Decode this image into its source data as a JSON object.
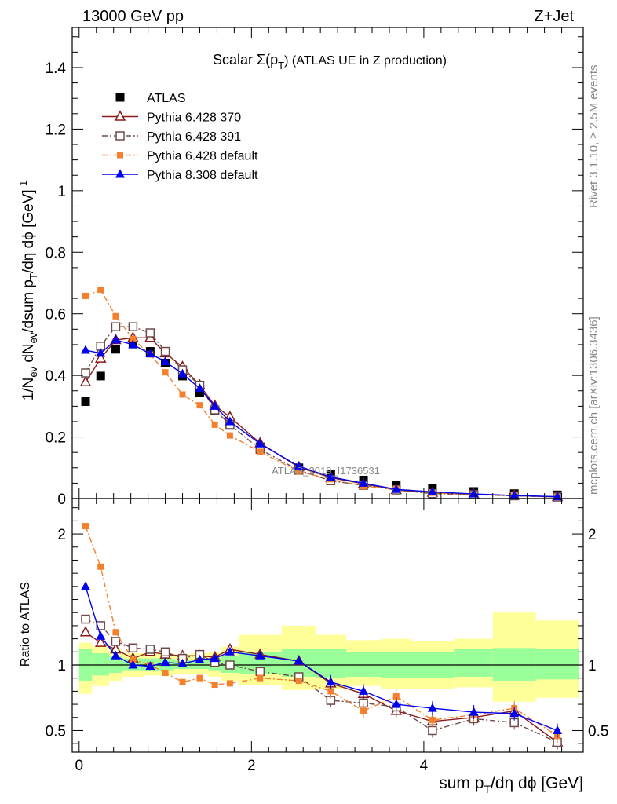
{
  "header": {
    "left": "13000 GeV pp",
    "right": "Z+Jet"
  },
  "side_labels": {
    "rivet": "Rivet 3.1.10, ≥ 2.5M events",
    "mcplots": "mcplots.cern.ch [arXiv:1306.3436]"
  },
  "watermark": "ATLAS_2019_I1736531",
  "colors": {
    "atlas": "#000000",
    "p370": "#8b1a1a",
    "p391": "#6e4a4a",
    "p6def": "#f47f2c",
    "p8def": "#0000ee",
    "band_inner": "#99ff99",
    "band_outer": "#ffff99"
  },
  "chart_data": [
    {
      "type": "line",
      "title_main": "Scalar Σ(p",
      "title_sub": "T",
      "title_tail": ") (ATLAS UE in Z production)",
      "ylabel": "1/N_ev dN_ev/dsum p_T/dη dϕ [GeV]^-1",
      "xlim": [
        -0.08,
        5.85
      ],
      "ylim": [
        0,
        1.53
      ],
      "yticks": [
        {
          "v": 0,
          "label": "0"
        },
        {
          "v": 0.2,
          "label": "0.2"
        },
        {
          "v": 0.4,
          "label": "0.4"
        },
        {
          "v": 0.6,
          "label": "0.6"
        },
        {
          "v": 0.8,
          "label": "0.8"
        },
        {
          "v": 1.0,
          "label": "1"
        },
        {
          "v": 1.2,
          "label": "1.2"
        },
        {
          "v": 1.4,
          "label": "1.4"
        }
      ],
      "x": [
        0.075,
        0.25,
        0.425,
        0.625,
        0.825,
        1.0,
        1.2,
        1.4,
        1.575,
        1.75,
        2.1,
        2.55,
        2.92,
        3.3,
        3.68,
        4.1,
        4.58,
        5.05,
        5.55
      ],
      "series": [
        {
          "key": "atlas",
          "name": "ATLAS",
          "marker": "square",
          "values": [
            0.315,
            0.398,
            0.485,
            0.502,
            0.478,
            0.44,
            0.398,
            0.343,
            0.285,
            0.238,
            0.168,
            0.1,
            0.078,
            0.06,
            0.042,
            0.033,
            0.023,
            0.016,
            0.012
          ]
        },
        {
          "key": "p370",
          "name": "Pythia 6.428 370",
          "marker": "triangle-open",
          "dash": "",
          "values": [
            0.378,
            0.455,
            0.515,
            0.522,
            0.522,
            0.472,
            0.428,
            0.368,
            0.302,
            0.265,
            0.18,
            0.102,
            0.068,
            0.048,
            0.028,
            0.019,
            0.014,
            0.01,
            0.005
          ]
        },
        {
          "key": "p391",
          "name": "Pythia 6.428 391",
          "marker": "square-open",
          "dash": "7,3,2,3",
          "values": [
            0.408,
            0.495,
            0.558,
            0.558,
            0.538,
            0.478,
            0.418,
            0.368,
            0.288,
            0.24,
            0.16,
            0.092,
            0.058,
            0.043,
            0.028,
            0.016,
            0.013,
            0.009,
            0.005
          ]
        },
        {
          "key": "p6def",
          "name": "Pythia 6.428 default",
          "marker": "square-small",
          "dash": "7,3,2,3",
          "values": [
            0.658,
            0.678,
            0.592,
            0.518,
            0.468,
            0.41,
            0.338,
            0.303,
            0.24,
            0.205,
            0.152,
            0.088,
            0.063,
            0.04,
            0.032,
            0.019,
            0.014,
            0.01,
            0.006
          ]
        },
        {
          "key": "p8def",
          "name": "Pythia 8.308 default",
          "marker": "triangle",
          "dash": "",
          "values": [
            0.482,
            0.472,
            0.515,
            0.5,
            0.47,
            0.445,
            0.405,
            0.358,
            0.3,
            0.25,
            0.178,
            0.105,
            0.07,
            0.05,
            0.03,
            0.022,
            0.015,
            0.01,
            0.006
          ]
        }
      ]
    },
    {
      "type": "line",
      "ylabel": "Ratio to ATLAS",
      "xlabel_main": "sum p",
      "xlabel_sub": "T",
      "xlabel_tail": "/dη dϕ [GeV]",
      "xlim": [
        -0.08,
        5.85
      ],
      "ylim": [
        0.335,
        2.27
      ],
      "xticks": [
        {
          "v": 0,
          "label": "0"
        },
        {
          "v": 2,
          "label": "2"
        },
        {
          "v": 4,
          "label": "4"
        }
      ],
      "yticks": [
        {
          "v": 0.5,
          "label": "0.5"
        },
        {
          "v": 1,
          "label": "1"
        },
        {
          "v": 2,
          "label": "2"
        }
      ],
      "bands": {
        "edges": [
          0.0,
          0.15,
          0.35,
          0.5,
          0.75,
          0.9,
          1.1,
          1.3,
          1.5,
          1.65,
          1.85,
          2.35,
          2.75,
          3.1,
          3.5,
          3.85,
          4.35,
          4.8,
          5.3,
          5.8
        ],
        "inner_lo": [
          0.88,
          0.92,
          0.94,
          0.96,
          0.96,
          0.96,
          0.97,
          0.97,
          0.96,
          0.94,
          0.93,
          0.91,
          0.9,
          0.91,
          0.9,
          0.9,
          0.91,
          0.88,
          0.89
        ],
        "inner_hi": [
          1.12,
          1.09,
          1.07,
          1.05,
          1.05,
          1.05,
          1.04,
          1.04,
          1.05,
          1.07,
          1.1,
          1.12,
          1.12,
          1.1,
          1.1,
          1.1,
          1.12,
          1.13,
          1.12
        ],
        "outer_lo": [
          0.78,
          0.84,
          0.88,
          0.91,
          0.92,
          0.92,
          0.93,
          0.93,
          0.91,
          0.88,
          0.85,
          0.81,
          0.82,
          0.84,
          0.82,
          0.82,
          0.83,
          0.72,
          0.75
        ],
        "outer_hi": [
          1.17,
          1.14,
          1.12,
          1.09,
          1.09,
          1.09,
          1.08,
          1.09,
          1.1,
          1.14,
          1.23,
          1.3,
          1.23,
          1.19,
          1.2,
          1.18,
          1.2,
          1.4,
          1.34
        ]
      },
      "series": [
        {
          "key": "p370",
          "values": [
            1.25,
            1.17,
            1.12,
            1.05,
            1.1,
            1.08,
            1.07,
            1.07,
            1.06,
            1.12,
            1.08,
            1.03,
            0.86,
            0.78,
            0.65,
            0.57,
            0.6,
            0.65,
            0.41
          ]
        },
        {
          "key": "p391",
          "values": [
            1.35,
            1.3,
            1.18,
            1.13,
            1.12,
            1.1,
            1.05,
            1.08,
            1.02,
            1.0,
            0.95,
            0.91,
            0.73,
            0.71,
            0.68,
            0.5,
            0.59,
            0.56,
            0.41
          ]
        },
        {
          "key": "p6def",
          "values": [
            2.06,
            1.75,
            1.25,
            1.04,
            1.0,
            0.94,
            0.87,
            0.9,
            0.85,
            0.86,
            0.9,
            0.88,
            0.8,
            0.65,
            0.76,
            0.58,
            0.62,
            0.67,
            0.46
          ]
        },
        {
          "key": "p8def",
          "values": [
            1.6,
            1.22,
            1.07,
            1.0,
            0.99,
            1.02,
            1.01,
            1.04,
            1.05,
            1.1,
            1.07,
            1.03,
            0.87,
            0.8,
            0.7,
            0.67,
            0.64,
            0.63,
            0.5
          ]
        }
      ]
    }
  ]
}
